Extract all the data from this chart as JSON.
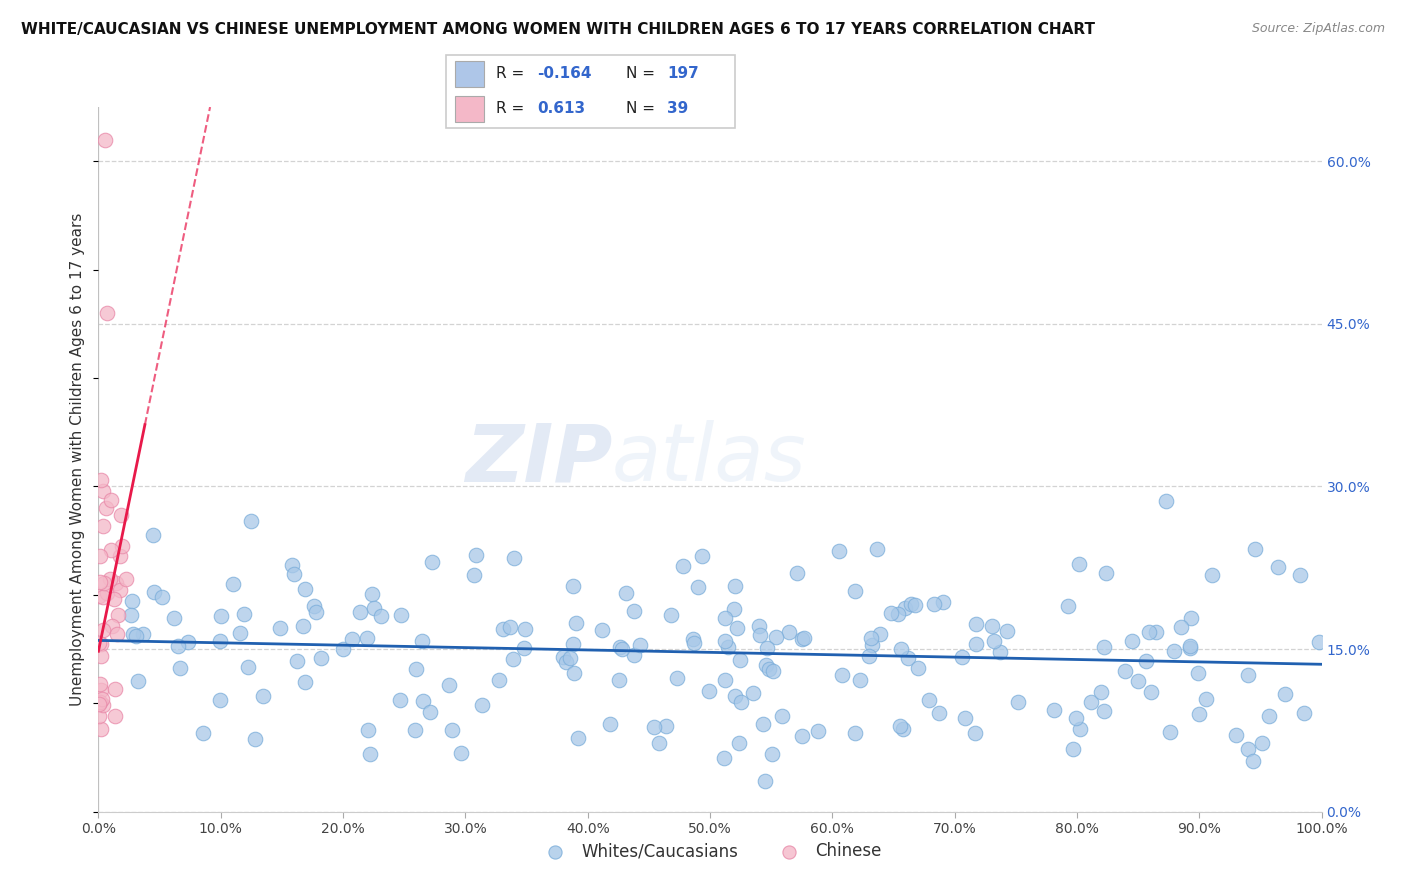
{
  "title": "WHITE/CAUCASIAN VS CHINESE UNEMPLOYMENT AMONG WOMEN WITH CHILDREN AGES 6 TO 17 YEARS CORRELATION CHART",
  "source": "Source: ZipAtlas.com",
  "ylabel": "Unemployment Among Women with Children Ages 6 to 17 years",
  "xlim": [
    0.0,
    1.0
  ],
  "ylim": [
    0.0,
    0.65
  ],
  "xticks": [
    0.0,
    0.1,
    0.2,
    0.3,
    0.4,
    0.5,
    0.6,
    0.7,
    0.8,
    0.9,
    1.0
  ],
  "xticklabels": [
    "0.0%",
    "10.0%",
    "20.0%",
    "30.0%",
    "40.0%",
    "50.0%",
    "60.0%",
    "70.0%",
    "80.0%",
    "90.0%",
    "100.0%"
  ],
  "yticks_right": [
    0.0,
    0.15,
    0.3,
    0.45,
    0.6
  ],
  "ytick_right_labels": [
    "0.0%",
    "15.0%",
    "30.0%",
    "45.0%",
    "60.0%"
  ],
  "blue_color": "#a8c8e8",
  "blue_edge_color": "#7aadda",
  "pink_color": "#f4b8c8",
  "pink_edge_color": "#e888a8",
  "blue_line_color": "#2060b0",
  "pink_line_color": "#e8194a",
  "watermark_zip": "ZIP",
  "watermark_atlas": "atlas",
  "blue_R": -0.164,
  "blue_N": 197,
  "pink_R": 0.613,
  "pink_N": 39,
  "blue_trend_intercept": 0.158,
  "blue_trend_slope": -0.022,
  "pink_trend_intercept": 0.148,
  "pink_trend_slope": 5.5,
  "legend_blue_color": "#aec6e8",
  "legend_pink_color": "#f4b8c8",
  "bottom_legend_labels": [
    "Whites/Caucasians",
    "Chinese"
  ],
  "title_fontsize": 11,
  "source_fontsize": 9,
  "tick_fontsize": 10,
  "ylabel_fontsize": 11
}
